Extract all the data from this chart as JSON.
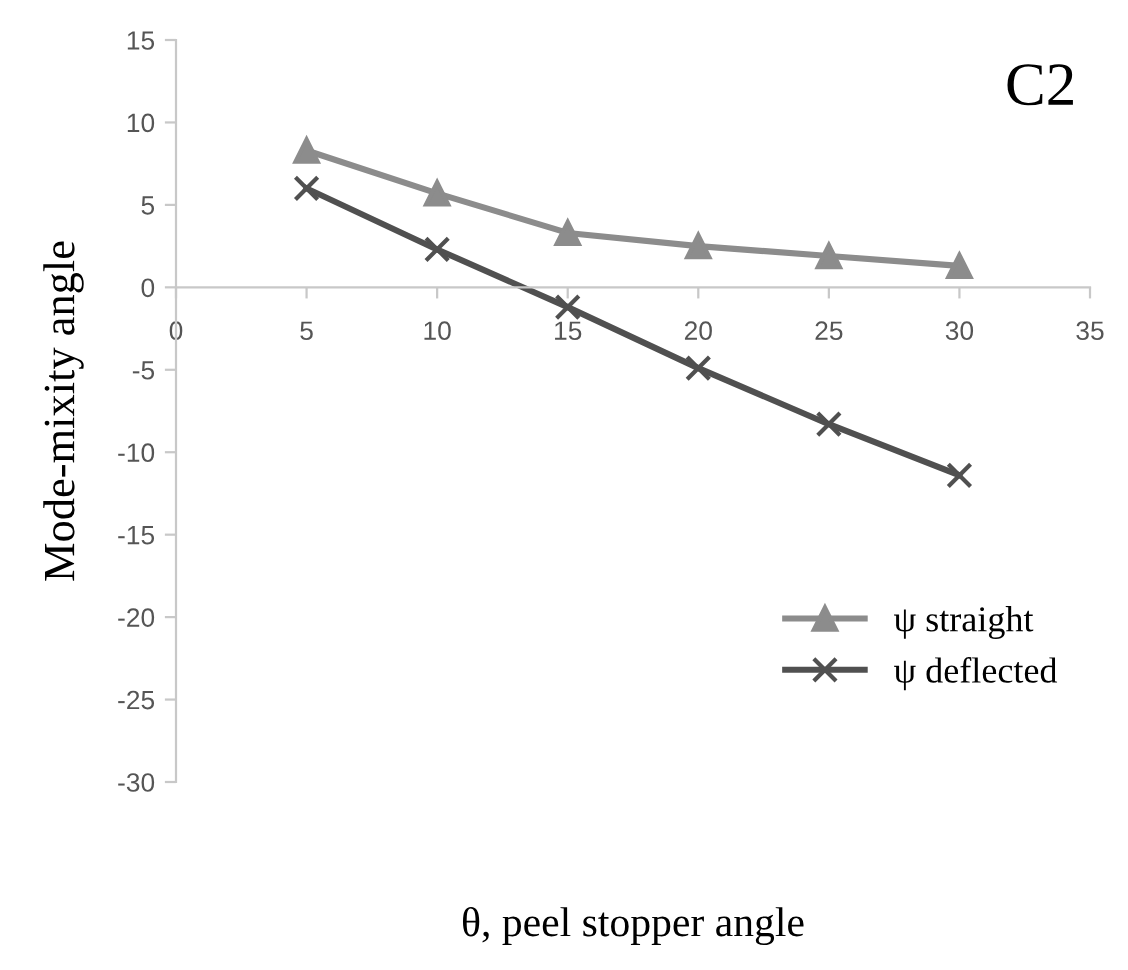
{
  "chart_data": {
    "type": "line",
    "xlabel": "θ, peel stopper angle",
    "ylabel": "Mode-mixity angle",
    "annotations": [
      "C2"
    ],
    "x": [
      5,
      10,
      15,
      20,
      25,
      30
    ],
    "series": [
      {
        "name": "ψ straight",
        "color": "#8c8c8c",
        "marker": "triangle",
        "values": [
          8.3,
          5.7,
          3.3,
          2.5,
          1.9,
          1.3
        ]
      },
      {
        "name": "ψ deflected",
        "color": "#505050",
        "marker": "cross",
        "values": [
          6.0,
          2.3,
          -1.2,
          -4.9,
          -8.3,
          -11.4
        ]
      }
    ],
    "xlim": [
      0,
      35
    ],
    "xticks": [
      0,
      5,
      10,
      15,
      20,
      25,
      30,
      35
    ],
    "ylim": [
      -30,
      15
    ],
    "yticks": [
      -30,
      -25,
      -20,
      -15,
      -10,
      -5,
      0,
      5,
      10,
      15
    ],
    "grid": false,
    "legend": "bottom right",
    "line_style": "solid"
  }
}
